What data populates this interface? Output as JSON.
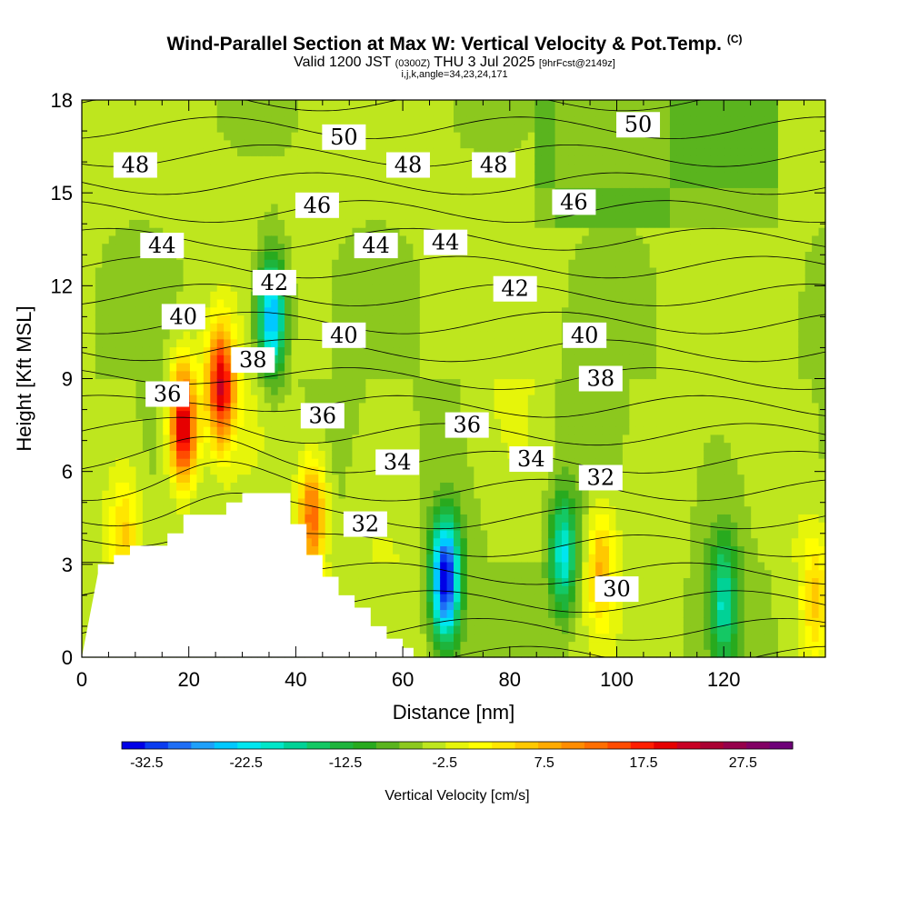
{
  "header": {
    "title": "Wind-Parallel Section at Max W: Vertical Velocity & Pot.Temp.",
    "title_mark": "(C)",
    "valid_prefix": "Valid 1200 JST",
    "valid_utc": "(0300Z)",
    "valid_date": "THU 3 Jul 2025",
    "valid_fcst": "[9hrFcst@2149z]",
    "subline": "i,j,k,angle=34,23,24,171"
  },
  "chart_data": {
    "type": "heatmap",
    "title": "Wind-Parallel Section at Max W: Vertical Velocity & Pot.Temp.",
    "xlabel": "Distance [nm]",
    "ylabel": "Height [Kft MSL]",
    "xlim": [
      0,
      139
    ],
    "ylim": [
      0,
      18
    ],
    "x_ticks": [
      "0",
      "20",
      "40",
      "60",
      "80",
      "100",
      "120"
    ],
    "y_ticks": [
      "0",
      "3",
      "6",
      "9",
      "12",
      "15",
      "18"
    ],
    "colorbar": {
      "label": "Vertical Velocity [cm/s]",
      "ticks": [
        "-32.5",
        "-22.5",
        "-12.5",
        "-2.5",
        "7.5",
        "17.5",
        "27.5"
      ],
      "min": -35,
      "max": 32.5,
      "step": 2.5,
      "colors": [
        "#0000e6",
        "#0a3cf0",
        "#1e6ef5",
        "#1ea0fa",
        "#00c8ff",
        "#00e6f0",
        "#00e6c8",
        "#00d296",
        "#14c864",
        "#1eb43c",
        "#28aa1e",
        "#5ab41e",
        "#8cc81e",
        "#bee61e",
        "#e6f50a",
        "#ffff00",
        "#ffe600",
        "#ffc800",
        "#ffaa00",
        "#ff8c00",
        "#ff6e00",
        "#ff4b00",
        "#ff1e00",
        "#e60000",
        "#c80023",
        "#aa0032",
        "#96004b",
        "#820064",
        "#6e0078"
      ]
    },
    "background_w": -2.0,
    "w_features": [
      {
        "x": 19,
        "y": 7.5,
        "value": 30
      },
      {
        "x": 26,
        "y": 8.8,
        "value": 27
      },
      {
        "x": 35.5,
        "y": 11.0,
        "value": -25
      },
      {
        "x": 43,
        "y": 4.5,
        "value": 20
      },
      {
        "x": 68,
        "y": 2.5,
        "value": -33
      },
      {
        "x": 90,
        "y": 3.3,
        "value": -18
      },
      {
        "x": 120,
        "y": 1.8,
        "value": -15
      },
      {
        "x": 8,
        "y": 4.0,
        "value": 8
      },
      {
        "x": 97,
        "y": 3.0,
        "value": 12
      },
      {
        "x": 137,
        "y": 2.0,
        "value": 10
      }
    ],
    "theta_contours": {
      "min": 30,
      "max": 50,
      "step": 1,
      "labels": [
        {
          "text": "30",
          "x": 100,
          "y": 2.2
        },
        {
          "text": "32",
          "x": 53,
          "y": 4.3
        },
        {
          "text": "32",
          "x": 97,
          "y": 5.8
        },
        {
          "text": "34",
          "x": 59,
          "y": 6.3
        },
        {
          "text": "34",
          "x": 84,
          "y": 6.4
        },
        {
          "text": "36",
          "x": 16,
          "y": 8.5
        },
        {
          "text": "36",
          "x": 45,
          "y": 7.8
        },
        {
          "text": "36",
          "x": 72,
          "y": 7.5
        },
        {
          "text": "38",
          "x": 32,
          "y": 9.6
        },
        {
          "text": "38",
          "x": 97,
          "y": 9.0
        },
        {
          "text": "40",
          "x": 19,
          "y": 11.0
        },
        {
          "text": "40",
          "x": 49,
          "y": 10.4
        },
        {
          "text": "40",
          "x": 94,
          "y": 10.4
        },
        {
          "text": "42",
          "x": 36,
          "y": 12.1
        },
        {
          "text": "42",
          "x": 81,
          "y": 11.9
        },
        {
          "text": "44",
          "x": 15,
          "y": 13.3
        },
        {
          "text": "44",
          "x": 55,
          "y": 13.3
        },
        {
          "text": "44",
          "x": 68,
          "y": 13.4
        },
        {
          "text": "46",
          "x": 44,
          "y": 14.6
        },
        {
          "text": "46",
          "x": 92,
          "y": 14.7
        },
        {
          "text": "48",
          "x": 10,
          "y": 15.9
        },
        {
          "text": "48",
          "x": 61,
          "y": 15.9
        },
        {
          "text": "48",
          "x": 77,
          "y": 15.9
        },
        {
          "text": "50",
          "x": 49,
          "y": 16.8
        },
        {
          "text": "50",
          "x": 104,
          "y": 17.2
        }
      ]
    },
    "terrain": [
      [
        0,
        0
      ],
      [
        3,
        2.7
      ],
      [
        3,
        3.0
      ],
      [
        6,
        3.0
      ],
      [
        6,
        3.3
      ],
      [
        9,
        3.3
      ],
      [
        9,
        3.6
      ],
      [
        16,
        3.6
      ],
      [
        16,
        4.0
      ],
      [
        19,
        4.0
      ],
      [
        19,
        4.6
      ],
      [
        27,
        4.6
      ],
      [
        27,
        5.0
      ],
      [
        30,
        5.0
      ],
      [
        30,
        5.3
      ],
      [
        39,
        5.3
      ],
      [
        39,
        4.3
      ],
      [
        42,
        4.3
      ],
      [
        42,
        3.3
      ],
      [
        45,
        3.3
      ],
      [
        45,
        2.6
      ],
      [
        48,
        2.6
      ],
      [
        48,
        2.0
      ],
      [
        51,
        2.0
      ],
      [
        51,
        1.6
      ],
      [
        54,
        1.6
      ],
      [
        54,
        1.0
      ],
      [
        57,
        1.0
      ],
      [
        57,
        0.6
      ],
      [
        60,
        0.6
      ],
      [
        60,
        0.3
      ],
      [
        62,
        0.3
      ],
      [
        62,
        0
      ]
    ]
  }
}
